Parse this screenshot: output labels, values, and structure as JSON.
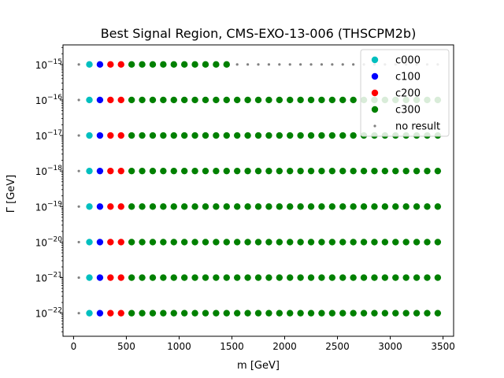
{
  "chart_data": {
    "type": "scatter",
    "title": "Best Signal Region, CMS-EXO-13-006 (THSCPM2b)",
    "xlabel": "m [GeV]",
    "ylabel": "Γ [GeV]",
    "xlim": [
      -100,
      3600
    ],
    "ylim_log10": [
      -22.65,
      -14.45
    ],
    "y_scale": "log",
    "grid": false,
    "legend_position": "top-right",
    "x_ticks": [
      0,
      500,
      1000,
      1500,
      2000,
      2500,
      3000,
      3500
    ],
    "x_tick_labels": [
      "0",
      "500",
      "1000",
      "1500",
      "2000",
      "2500",
      "3000",
      "3500"
    ],
    "y_tick_exponents": [
      -22,
      -21,
      -20,
      -19,
      -18,
      -17,
      -16,
      -15
    ],
    "y_tick_labels": [
      "10",
      "10",
      "10",
      "10",
      "10",
      "10",
      "10",
      "10"
    ],
    "y_tick_label_exponents": [
      "−22",
      "−21",
      "−20",
      "−19",
      "−18",
      "−17",
      "−16",
      "−15"
    ],
    "series": [
      {
        "name": "c000",
        "color": "#00bfbf",
        "marker": "circle"
      },
      {
        "name": "c100",
        "color": "#0000ff",
        "marker": "circle"
      },
      {
        "name": "c200",
        "color": "#ff0000",
        "marker": "circle"
      },
      {
        "name": "c300",
        "color": "#008000",
        "marker": "circle"
      },
      {
        "name": "no result",
        "color": "#808080",
        "marker": "small-dot"
      }
    ],
    "rows": [
      {
        "gamma_exp": -22,
        "points": [
          [
            50,
            "no result"
          ],
          [
            150,
            "c000"
          ],
          [
            250,
            "c100"
          ],
          [
            350,
            "c200"
          ],
          [
            450,
            "c200"
          ],
          [
            550,
            "c300"
          ],
          [
            650,
            "c300"
          ],
          [
            750,
            "c300"
          ],
          [
            850,
            "c300"
          ],
          [
            950,
            "c300"
          ],
          [
            1050,
            "c300"
          ],
          [
            1150,
            "c300"
          ],
          [
            1250,
            "c300"
          ],
          [
            1350,
            "c300"
          ],
          [
            1450,
            "c300"
          ],
          [
            1550,
            "c300"
          ],
          [
            1650,
            "c300"
          ],
          [
            1750,
            "c300"
          ],
          [
            1850,
            "c300"
          ],
          [
            1950,
            "c300"
          ],
          [
            2050,
            "c300"
          ],
          [
            2150,
            "c300"
          ],
          [
            2250,
            "c300"
          ],
          [
            2350,
            "c300"
          ],
          [
            2450,
            "c300"
          ],
          [
            2550,
            "c300"
          ],
          [
            2650,
            "c300"
          ],
          [
            2750,
            "c300"
          ],
          [
            2850,
            "c300"
          ],
          [
            2950,
            "c300"
          ],
          [
            3050,
            "c300"
          ],
          [
            3150,
            "c300"
          ],
          [
            3250,
            "c300"
          ],
          [
            3350,
            "c300"
          ],
          [
            3450,
            "c300"
          ]
        ]
      },
      {
        "gamma_exp": -21,
        "points": [
          [
            50,
            "no result"
          ],
          [
            150,
            "c000"
          ],
          [
            250,
            "c100"
          ],
          [
            350,
            "c200"
          ],
          [
            450,
            "c200"
          ],
          [
            550,
            "c300"
          ],
          [
            650,
            "c300"
          ],
          [
            750,
            "c300"
          ],
          [
            850,
            "c300"
          ],
          [
            950,
            "c300"
          ],
          [
            1050,
            "c300"
          ],
          [
            1150,
            "c300"
          ],
          [
            1250,
            "c300"
          ],
          [
            1350,
            "c300"
          ],
          [
            1450,
            "c300"
          ],
          [
            1550,
            "c300"
          ],
          [
            1650,
            "c300"
          ],
          [
            1750,
            "c300"
          ],
          [
            1850,
            "c300"
          ],
          [
            1950,
            "c300"
          ],
          [
            2050,
            "c300"
          ],
          [
            2150,
            "c300"
          ],
          [
            2250,
            "c300"
          ],
          [
            2350,
            "c300"
          ],
          [
            2450,
            "c300"
          ],
          [
            2550,
            "c300"
          ],
          [
            2650,
            "c300"
          ],
          [
            2750,
            "c300"
          ],
          [
            2850,
            "c300"
          ],
          [
            2950,
            "c300"
          ],
          [
            3050,
            "c300"
          ],
          [
            3150,
            "c300"
          ],
          [
            3250,
            "c300"
          ],
          [
            3350,
            "c300"
          ],
          [
            3450,
            "c300"
          ]
        ]
      },
      {
        "gamma_exp": -20,
        "points": [
          [
            50,
            "no result"
          ],
          [
            150,
            "c000"
          ],
          [
            250,
            "c100"
          ],
          [
            350,
            "c200"
          ],
          [
            450,
            "c200"
          ],
          [
            550,
            "c300"
          ],
          [
            650,
            "c300"
          ],
          [
            750,
            "c300"
          ],
          [
            850,
            "c300"
          ],
          [
            950,
            "c300"
          ],
          [
            1050,
            "c300"
          ],
          [
            1150,
            "c300"
          ],
          [
            1250,
            "c300"
          ],
          [
            1350,
            "c300"
          ],
          [
            1450,
            "c300"
          ],
          [
            1550,
            "c300"
          ],
          [
            1650,
            "c300"
          ],
          [
            1750,
            "c300"
          ],
          [
            1850,
            "c300"
          ],
          [
            1950,
            "c300"
          ],
          [
            2050,
            "c300"
          ],
          [
            2150,
            "c300"
          ],
          [
            2250,
            "c300"
          ],
          [
            2350,
            "c300"
          ],
          [
            2450,
            "c300"
          ],
          [
            2550,
            "c300"
          ],
          [
            2650,
            "c300"
          ],
          [
            2750,
            "c300"
          ],
          [
            2850,
            "c300"
          ],
          [
            2950,
            "c300"
          ],
          [
            3050,
            "c300"
          ],
          [
            3150,
            "c300"
          ],
          [
            3250,
            "c300"
          ],
          [
            3350,
            "c300"
          ],
          [
            3450,
            "c300"
          ]
        ]
      },
      {
        "gamma_exp": -19,
        "points": [
          [
            50,
            "no result"
          ],
          [
            150,
            "c000"
          ],
          [
            250,
            "c100"
          ],
          [
            350,
            "c200"
          ],
          [
            450,
            "c200"
          ],
          [
            550,
            "c300"
          ],
          [
            650,
            "c300"
          ],
          [
            750,
            "c300"
          ],
          [
            850,
            "c300"
          ],
          [
            950,
            "c300"
          ],
          [
            1050,
            "c300"
          ],
          [
            1150,
            "c300"
          ],
          [
            1250,
            "c300"
          ],
          [
            1350,
            "c300"
          ],
          [
            1450,
            "c300"
          ],
          [
            1550,
            "c300"
          ],
          [
            1650,
            "c300"
          ],
          [
            1750,
            "c300"
          ],
          [
            1850,
            "c300"
          ],
          [
            1950,
            "c300"
          ],
          [
            2050,
            "c300"
          ],
          [
            2150,
            "c300"
          ],
          [
            2250,
            "c300"
          ],
          [
            2350,
            "c300"
          ],
          [
            2450,
            "c300"
          ],
          [
            2550,
            "c300"
          ],
          [
            2650,
            "c300"
          ],
          [
            2750,
            "c300"
          ],
          [
            2850,
            "c300"
          ],
          [
            2950,
            "c300"
          ],
          [
            3050,
            "c300"
          ],
          [
            3150,
            "c300"
          ],
          [
            3250,
            "c300"
          ],
          [
            3350,
            "c300"
          ],
          [
            3450,
            "c300"
          ]
        ]
      },
      {
        "gamma_exp": -18,
        "points": [
          [
            50,
            "no result"
          ],
          [
            150,
            "c000"
          ],
          [
            250,
            "c100"
          ],
          [
            350,
            "c200"
          ],
          [
            450,
            "c200"
          ],
          [
            550,
            "c300"
          ],
          [
            650,
            "c300"
          ],
          [
            750,
            "c300"
          ],
          [
            850,
            "c300"
          ],
          [
            950,
            "c300"
          ],
          [
            1050,
            "c300"
          ],
          [
            1150,
            "c300"
          ],
          [
            1250,
            "c300"
          ],
          [
            1350,
            "c300"
          ],
          [
            1450,
            "c300"
          ],
          [
            1550,
            "c300"
          ],
          [
            1650,
            "c300"
          ],
          [
            1750,
            "c300"
          ],
          [
            1850,
            "c300"
          ],
          [
            1950,
            "c300"
          ],
          [
            2050,
            "c300"
          ],
          [
            2150,
            "c300"
          ],
          [
            2250,
            "c300"
          ],
          [
            2350,
            "c300"
          ],
          [
            2450,
            "c300"
          ],
          [
            2550,
            "c300"
          ],
          [
            2650,
            "c300"
          ],
          [
            2750,
            "c300"
          ],
          [
            2850,
            "c300"
          ],
          [
            2950,
            "c300"
          ],
          [
            3050,
            "c300"
          ],
          [
            3150,
            "c300"
          ],
          [
            3250,
            "c300"
          ],
          [
            3350,
            "c300"
          ],
          [
            3450,
            "c300"
          ]
        ]
      },
      {
        "gamma_exp": -17,
        "points": [
          [
            50,
            "no result"
          ],
          [
            150,
            "c000"
          ],
          [
            250,
            "c100"
          ],
          [
            350,
            "c200"
          ],
          [
            450,
            "c200"
          ],
          [
            550,
            "c300"
          ],
          [
            650,
            "c300"
          ],
          [
            750,
            "c300"
          ],
          [
            850,
            "c300"
          ],
          [
            950,
            "c300"
          ],
          [
            1050,
            "c300"
          ],
          [
            1150,
            "c300"
          ],
          [
            1250,
            "c300"
          ],
          [
            1350,
            "c300"
          ],
          [
            1450,
            "c300"
          ],
          [
            1550,
            "c300"
          ],
          [
            1650,
            "c300"
          ],
          [
            1750,
            "c300"
          ],
          [
            1850,
            "c300"
          ],
          [
            1950,
            "c300"
          ],
          [
            2050,
            "c300"
          ],
          [
            2150,
            "c300"
          ],
          [
            2250,
            "c300"
          ],
          [
            2350,
            "c300"
          ],
          [
            2450,
            "c300"
          ],
          [
            2550,
            "c300"
          ],
          [
            2650,
            "c300"
          ],
          [
            2750,
            "c300"
          ],
          [
            2850,
            "c300"
          ],
          [
            2950,
            "c300"
          ],
          [
            3050,
            "c300"
          ],
          [
            3150,
            "c300"
          ],
          [
            3250,
            "c300"
          ],
          [
            3350,
            "c300"
          ],
          [
            3450,
            "c300"
          ]
        ]
      },
      {
        "gamma_exp": -16,
        "points": [
          [
            50,
            "no result"
          ],
          [
            150,
            "c000"
          ],
          [
            250,
            "c100"
          ],
          [
            350,
            "c200"
          ],
          [
            450,
            "c200"
          ],
          [
            550,
            "c300"
          ],
          [
            650,
            "c300"
          ],
          [
            750,
            "c300"
          ],
          [
            850,
            "c300"
          ],
          [
            950,
            "c300"
          ],
          [
            1050,
            "c300"
          ],
          [
            1150,
            "c300"
          ],
          [
            1250,
            "c300"
          ],
          [
            1350,
            "c300"
          ],
          [
            1450,
            "c300"
          ],
          [
            1550,
            "c300"
          ],
          [
            1650,
            "c300"
          ],
          [
            1750,
            "c300"
          ],
          [
            1850,
            "c300"
          ],
          [
            1950,
            "c300"
          ],
          [
            2050,
            "c300"
          ],
          [
            2150,
            "c300"
          ],
          [
            2250,
            "c300"
          ],
          [
            2350,
            "c300"
          ],
          [
            2450,
            "c300"
          ],
          [
            2550,
            "c300"
          ],
          [
            2650,
            "c300"
          ],
          [
            2750,
            "c300"
          ],
          [
            2850,
            "c300"
          ],
          [
            2950,
            "c300"
          ],
          [
            3050,
            "c300"
          ],
          [
            3150,
            "c300"
          ],
          [
            3250,
            "c300"
          ],
          [
            3350,
            "c300"
          ],
          [
            3450,
            "c300"
          ]
        ]
      },
      {
        "gamma_exp": -15,
        "points": [
          [
            50,
            "no result"
          ],
          [
            150,
            "c000"
          ],
          [
            250,
            "c100"
          ],
          [
            350,
            "c200"
          ],
          [
            450,
            "c200"
          ],
          [
            550,
            "c300"
          ],
          [
            650,
            "c300"
          ],
          [
            750,
            "c300"
          ],
          [
            850,
            "c300"
          ],
          [
            950,
            "c300"
          ],
          [
            1050,
            "c300"
          ],
          [
            1150,
            "c300"
          ],
          [
            1250,
            "c300"
          ],
          [
            1350,
            "c300"
          ],
          [
            1450,
            "c300"
          ],
          [
            1550,
            "no result"
          ],
          [
            1650,
            "no result"
          ],
          [
            1750,
            "no result"
          ],
          [
            1850,
            "no result"
          ],
          [
            1950,
            "no result"
          ],
          [
            2050,
            "no result"
          ],
          [
            2150,
            "no result"
          ],
          [
            2250,
            "no result"
          ],
          [
            2350,
            "no result"
          ],
          [
            2450,
            "no result"
          ],
          [
            2550,
            "no result"
          ],
          [
            2650,
            "no result"
          ],
          [
            2750,
            "no result"
          ],
          [
            2850,
            "no result"
          ],
          [
            2950,
            "no result"
          ],
          [
            3050,
            "no result"
          ],
          [
            3150,
            "no result"
          ],
          [
            3250,
            "no result"
          ],
          [
            3350,
            "no result"
          ],
          [
            3450,
            "no result"
          ]
        ]
      }
    ]
  }
}
